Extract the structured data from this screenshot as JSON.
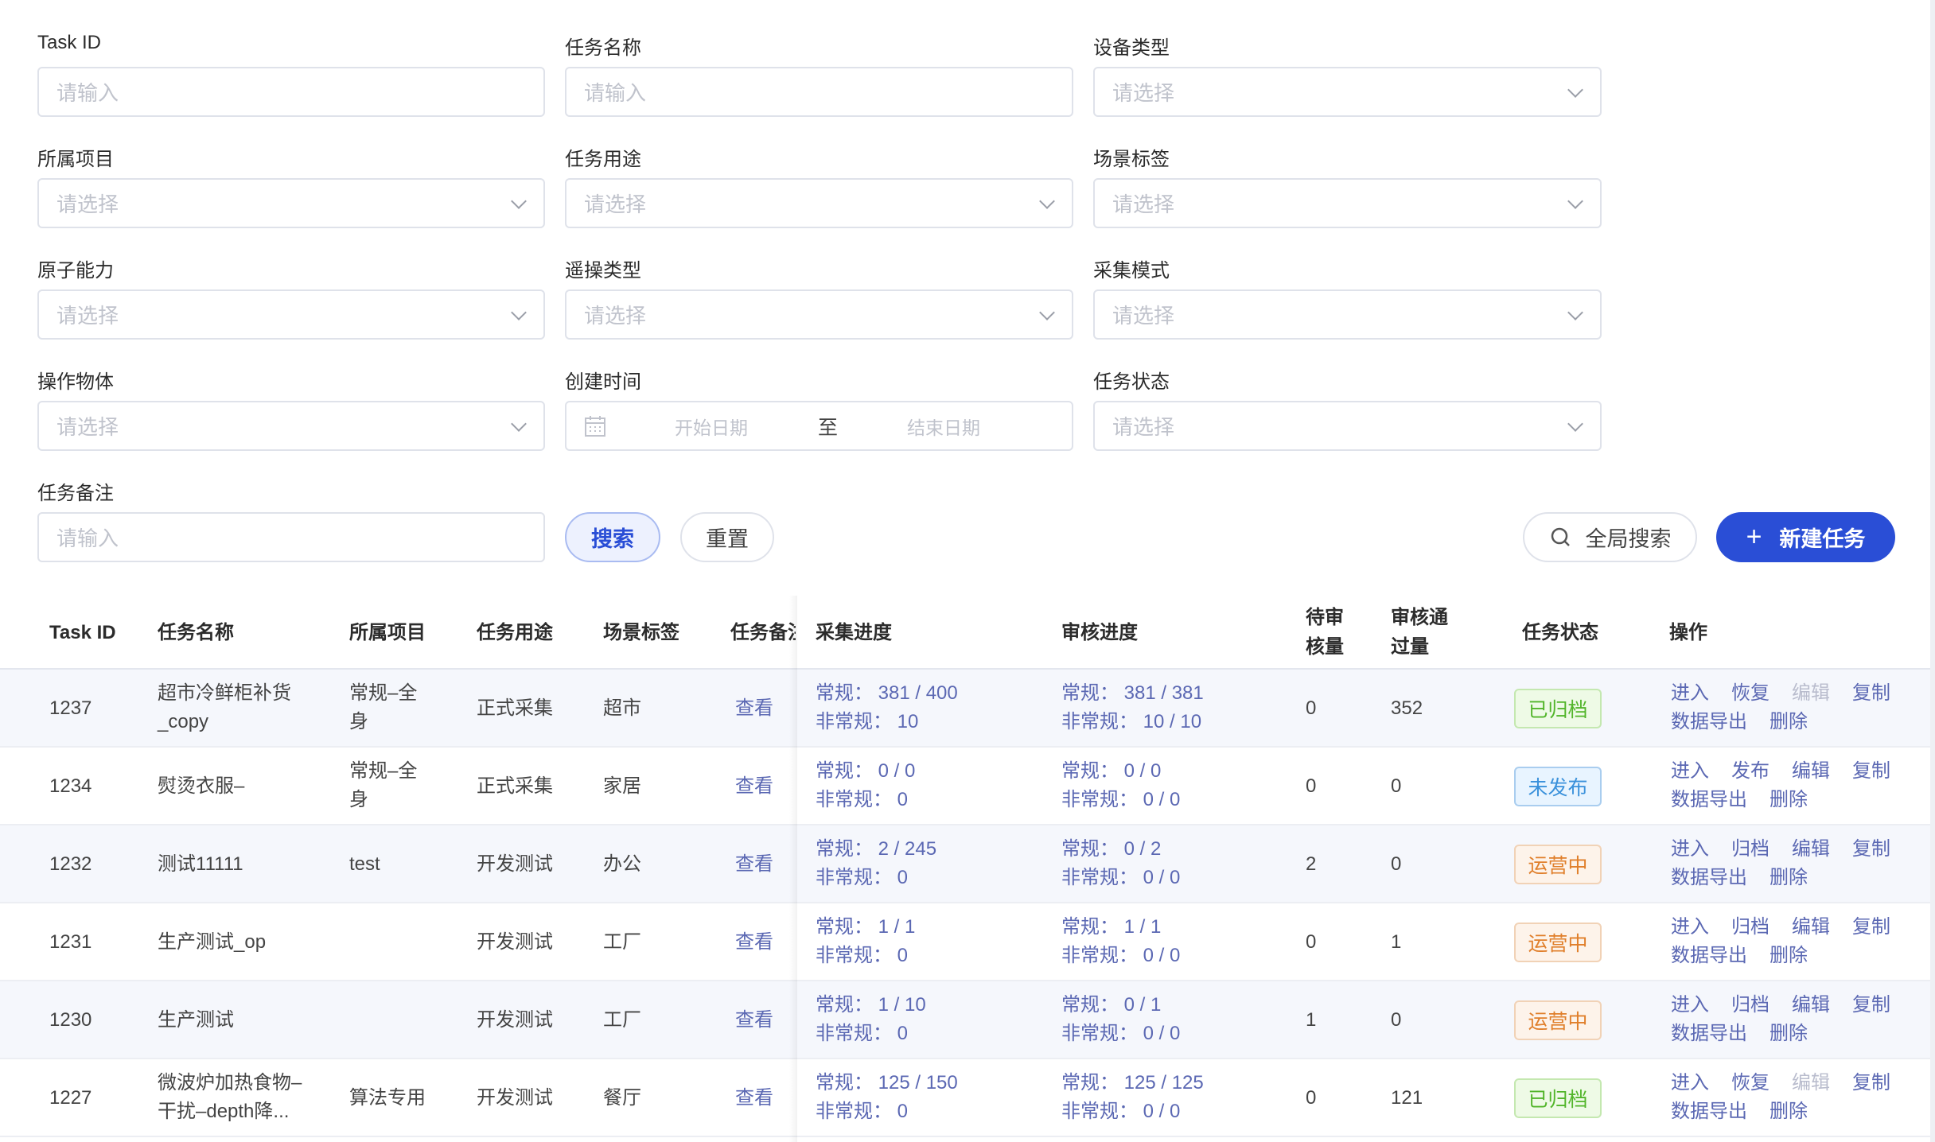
{
  "filters": [
    {
      "label": "Task ID",
      "placeholder": "请输入",
      "type": "input"
    },
    {
      "label": "任务名称",
      "placeholder": "请输入",
      "type": "input"
    },
    {
      "label": "设备类型",
      "placeholder": "请选择",
      "type": "select"
    },
    {
      "label": "所属项目",
      "placeholder": "请选择",
      "type": "select"
    },
    {
      "label": "任务用途",
      "placeholder": "请选择",
      "type": "select"
    },
    {
      "label": "场景标签",
      "placeholder": "请选择",
      "type": "select"
    },
    {
      "label": "原子能力",
      "placeholder": "请选择",
      "type": "select"
    },
    {
      "label": "遥操类型",
      "placeholder": "请选择",
      "type": "select"
    },
    {
      "label": "采集模式",
      "placeholder": "请选择",
      "type": "select"
    },
    {
      "label": "操作物体",
      "placeholder": "请选择",
      "type": "select"
    },
    {
      "label": "创建时间",
      "type": "daterange",
      "start": "开始日期",
      "sep": "至",
      "end": "结束日期"
    },
    {
      "label": "任务状态",
      "placeholder": "请选择",
      "type": "select"
    },
    {
      "label": "任务备注",
      "placeholder": "请输入",
      "type": "input"
    }
  ],
  "actions": {
    "search": "搜索",
    "reset": "重置",
    "global_search": "全局搜索",
    "new_task": "新建任务"
  },
  "colors": {
    "primary": "#2a4ed6",
    "link": "#5b68b3"
  },
  "table": {
    "headers": [
      "Task ID",
      "任务名称",
      "所属项目",
      "任务用途",
      "场景标签",
      "任务备注",
      "采集进度",
      "审核进度",
      "待审\n核量",
      "审核通\n过量",
      "任务状态",
      "操作"
    ],
    "rows": [
      {
        "id": "1237",
        "name": [
          "超市冷鲜柜补货",
          "_copy"
        ],
        "project": [
          "常规–全",
          "身"
        ],
        "purpose": "正式采集",
        "scene": "超市",
        "remark": "查看",
        "collect": [
          "常规： 381 / 400",
          "非常规： 10"
        ],
        "review": [
          "常规： 381 / 381",
          "非常规： 10 / 10"
        ],
        "pending": "0",
        "passed": "352",
        "status": "已归档",
        "status_kind": "archived",
        "ops": [
          "进入",
          "恢复",
          "编辑",
          "复制",
          "数据导出",
          "删除"
        ],
        "ops_disabled": [
          2
        ]
      },
      {
        "id": "1234",
        "name": [
          "熨烫衣服–"
        ],
        "project": [
          "常规–全",
          "身"
        ],
        "purpose": "正式采集",
        "scene": "家居",
        "remark": "查看",
        "collect": [
          "常规： 0 / 0",
          "非常规： 0"
        ],
        "review": [
          "常规： 0 / 0",
          "非常规： 0 / 0"
        ],
        "pending": "0",
        "passed": "0",
        "status": "未发布",
        "status_kind": "draft",
        "ops": [
          "进入",
          "发布",
          "编辑",
          "复制",
          "数据导出",
          "删除"
        ],
        "ops_disabled": []
      },
      {
        "id": "1232",
        "name": [
          "测试11111"
        ],
        "project": [
          "test"
        ],
        "purpose": "开发测试",
        "scene": "办公",
        "remark": "查看",
        "collect": [
          "常规： 2 / 245",
          "非常规： 0"
        ],
        "review": [
          "常规： 0 / 2",
          "非常规： 0 / 0"
        ],
        "pending": "2",
        "passed": "0",
        "status": "运营中",
        "status_kind": "running",
        "ops": [
          "进入",
          "归档",
          "编辑",
          "复制",
          "数据导出",
          "删除"
        ],
        "ops_disabled": []
      },
      {
        "id": "1231",
        "name": [
          "生产测试_op"
        ],
        "project": [],
        "purpose": "开发测试",
        "scene": "工厂",
        "remark": "查看",
        "collect": [
          "常规： 1 / 1",
          "非常规： 0"
        ],
        "review": [
          "常规： 1 / 1",
          "非常规： 0 / 0"
        ],
        "pending": "0",
        "passed": "1",
        "status": "运营中",
        "status_kind": "running",
        "ops": [
          "进入",
          "归档",
          "编辑",
          "复制",
          "数据导出",
          "删除"
        ],
        "ops_disabled": []
      },
      {
        "id": "1230",
        "name": [
          "生产测试"
        ],
        "project": [],
        "purpose": "开发测试",
        "scene": "工厂",
        "remark": "查看",
        "collect": [
          "常规： 1 / 10",
          "非常规： 0"
        ],
        "review": [
          "常规： 0 / 1",
          "非常规： 0 / 0"
        ],
        "pending": "1",
        "passed": "0",
        "status": "运营中",
        "status_kind": "running",
        "ops": [
          "进入",
          "归档",
          "编辑",
          "复制",
          "数据导出",
          "删除"
        ],
        "ops_disabled": []
      },
      {
        "id": "1227",
        "name": [
          "微波炉加热食物–",
          "干扰–depth降..."
        ],
        "project": [
          "算法专用"
        ],
        "purpose": "开发测试",
        "scene": "餐厅",
        "remark": "查看",
        "collect": [
          "常规： 125 / 150",
          "非常规： 0"
        ],
        "review": [
          "常规： 125 / 125",
          "非常规： 0 / 0"
        ],
        "pending": "0",
        "passed": "121",
        "status": "已归档",
        "status_kind": "archived",
        "ops": [
          "进入",
          "恢复",
          "编辑",
          "复制",
          "数据导出",
          "删除"
        ],
        "ops_disabled": [
          2
        ]
      }
    ]
  }
}
